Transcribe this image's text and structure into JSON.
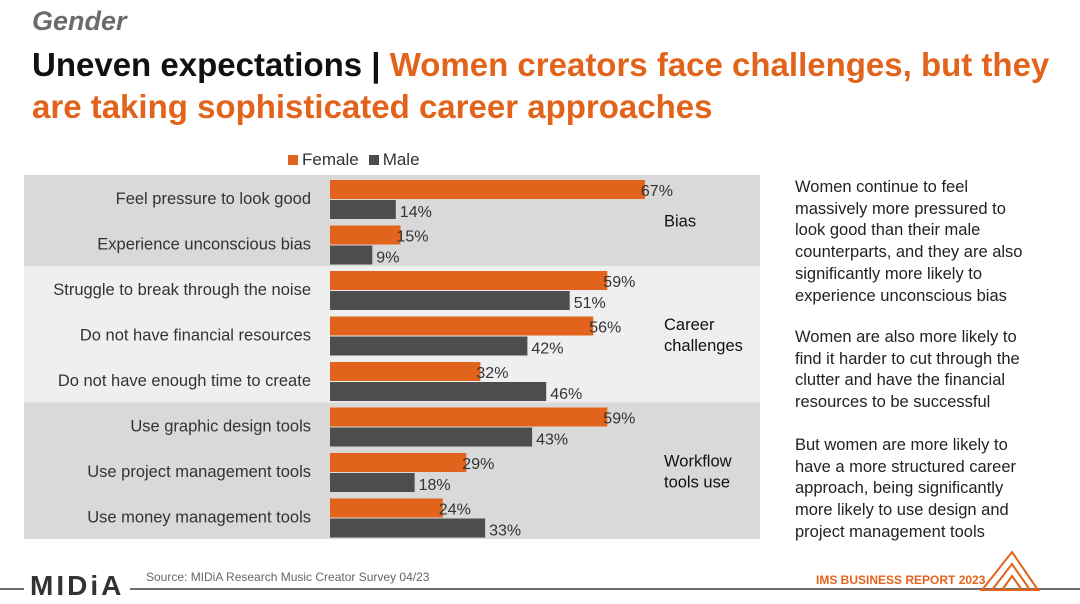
{
  "page": {
    "section_label": "Gender",
    "headline_part1": "Uneven expectations | ",
    "headline_part2": "Women creators face challenges, but they are taking sophisticated career approaches"
  },
  "legend": {
    "female": "Female",
    "male": "Male"
  },
  "colors": {
    "female": "#e2641c",
    "male": "#4d4d4d",
    "band_dark": "#d9d9d9",
    "band_light": "#efefef",
    "accent": "#e2641c"
  },
  "chart_data": {
    "type": "bar",
    "orientation": "horizontal",
    "categories": [
      "Feel pressure to look good",
      "Experience unconscious bias",
      "Struggle to break through the noise",
      "Do not have financial resources",
      "Do not have enough time to create",
      "Use graphic design tools",
      "Use project management tools",
      "Use money management tools"
    ],
    "series": [
      {
        "name": "Female",
        "values": [
          67,
          15,
          59,
          56,
          32,
          59,
          29,
          24
        ]
      },
      {
        "name": "Male",
        "values": [
          14,
          9,
          51,
          42,
          46,
          43,
          18,
          33
        ]
      }
    ],
    "value_suffix": "%",
    "groups": [
      {
        "label_lines": [
          "Bias"
        ],
        "count": 2
      },
      {
        "label_lines": [
          "Career",
          "challenges"
        ],
        "count": 3
      },
      {
        "label_lines": [
          "Workflow",
          "tools use"
        ],
        "count": 3
      }
    ],
    "legend_position": "top",
    "xlim": [
      0,
      100
    ]
  },
  "commentary": [
    [
      "Women continue to feel",
      "massively more pressured to",
      "look good than their male",
      "counterparts, and they are also",
      "significantly more likely to",
      "experience unconscious bias"
    ],
    [
      "Women are also more likely to",
      "find it harder to cut through the",
      "clutter and have the financial",
      "resources to be successful"
    ],
    [
      "But women are more likely to",
      "have a more structured career",
      "approach, being significantly",
      "more likely to use design and",
      "project management tools"
    ]
  ],
  "footer": {
    "logo": "MIDiA",
    "source": "Source: MIDiA Research Music Creator Survey 04/23",
    "report": "IMS BUSINESS REPORT 2023"
  }
}
